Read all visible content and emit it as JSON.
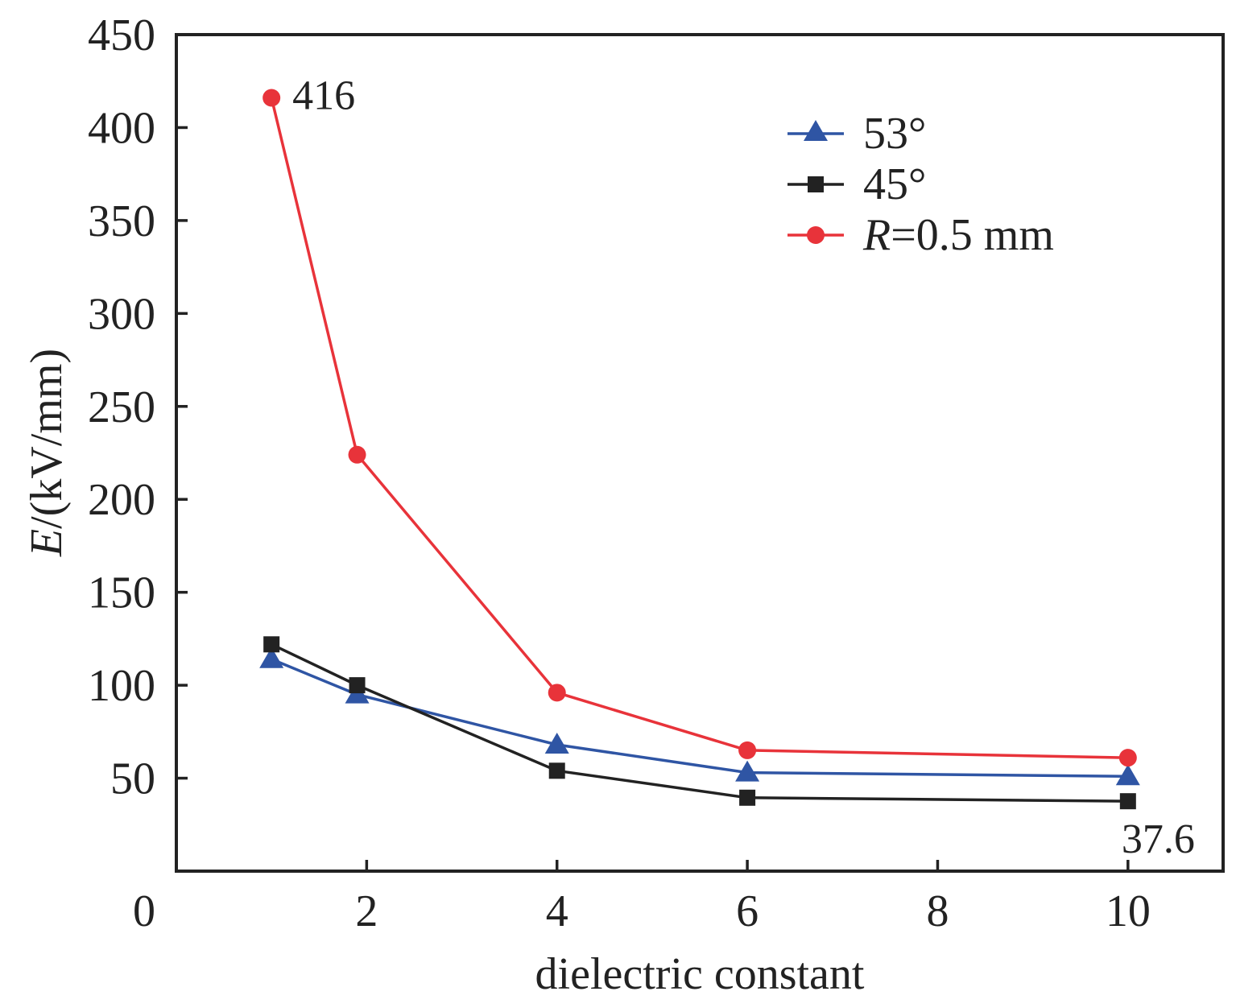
{
  "chart_data": {
    "type": "line",
    "xlabel": "dielectric constant",
    "ylabel_italic": "E",
    "ylabel_rest": "/(kV/mm)",
    "xlim": [
      0,
      11
    ],
    "ylim": [
      0,
      450
    ],
    "x_ticks": [
      0,
      2,
      4,
      6,
      8,
      10
    ],
    "x_tick_labels": [
      "0",
      "2",
      "4",
      "6",
      "8",
      "10"
    ],
    "y_ticks": [
      50,
      100,
      150,
      200,
      250,
      300,
      350,
      400,
      450
    ],
    "y_tick_labels": [
      "50",
      "100",
      "150",
      "200",
      "250",
      "300",
      "350",
      "400",
      "450"
    ],
    "legend_position": "top-right",
    "series": [
      {
        "name": "53°",
        "marker": "triangle",
        "color": "#2f55a4",
        "x": [
          1,
          1.9,
          4,
          6,
          10
        ],
        "y": [
          114,
          95,
          68,
          53,
          51
        ]
      },
      {
        "name": "45°",
        "marker": "square",
        "color": "#222222",
        "x": [
          1,
          1.9,
          4,
          6,
          10
        ],
        "y": [
          122,
          100,
          54,
          39.5,
          37.6
        ]
      },
      {
        "name_italic": "R",
        "name_rest": "=0.5 mm",
        "marker": "circle",
        "color": "#e8333a",
        "x": [
          1,
          1.9,
          4,
          6,
          10
        ],
        "y": [
          416,
          224,
          96,
          65,
          61
        ]
      }
    ],
    "annotations": [
      {
        "text": "416",
        "x": 1,
        "y": 416
      },
      {
        "text": "37.6",
        "x": 10,
        "y": 37.6
      }
    ]
  }
}
